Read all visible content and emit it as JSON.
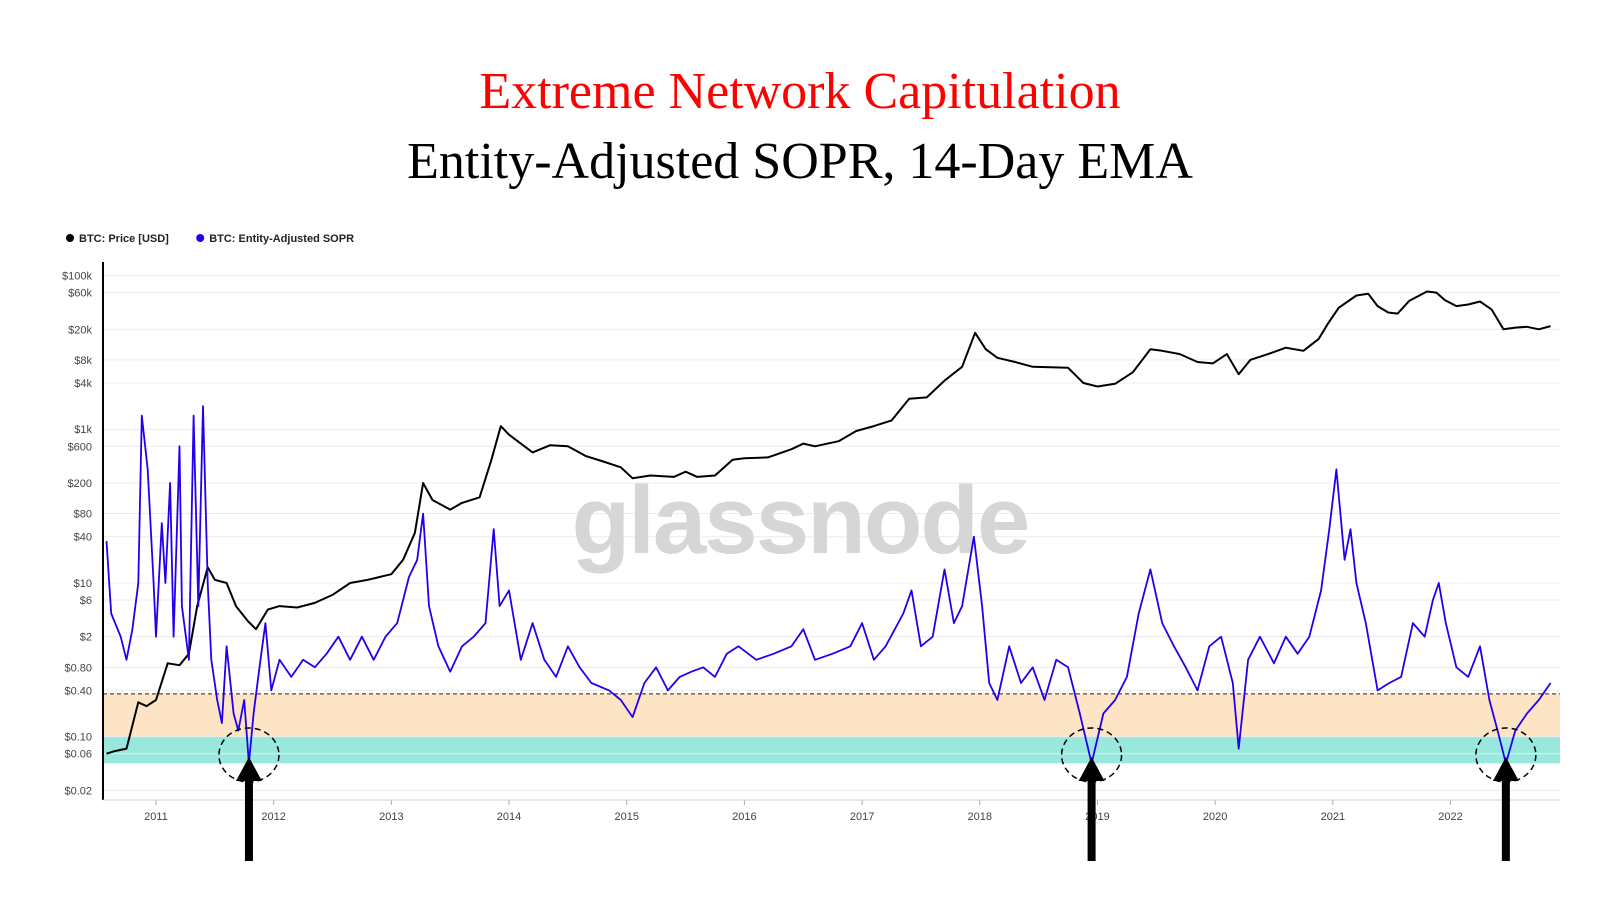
{
  "header": {
    "title": "Extreme Network Capitulation",
    "subtitle": "Entity-Adjusted SOPR, 14-Day EMA"
  },
  "watermark": "glassnode",
  "chart_data": {
    "type": "line",
    "legend": [
      {
        "label": "BTC: Price [USD]",
        "color": "#000000"
      },
      {
        "label": "BTC: Entity-Adjusted SOPR",
        "color": "#2200ee"
      }
    ],
    "y_scale": "log",
    "y_ticks": [
      "$100k",
      "$60k",
      "$20k",
      "$8k",
      "$4k",
      "$1k",
      "$600",
      "$200",
      "$80",
      "$40",
      "$10",
      "$6",
      "$2",
      "$0.80",
      "$0.40",
      "$0.10",
      "$0.06",
      "$0.02"
    ],
    "x_ticks": [
      "2011",
      "2012",
      "2013",
      "2014",
      "2015",
      "2016",
      "2017",
      "2018",
      "2019",
      "2020",
      "2021",
      "2022"
    ],
    "x_range": [
      2010.55,
      2022.93
    ],
    "bands": [
      {
        "name": "orange-zone",
        "from": 0.1,
        "to": 0.36,
        "color": "#fde4c4"
      },
      {
        "name": "teal-zone",
        "from": 0.045,
        "to": 0.1,
        "color": "#98e8de"
      }
    ],
    "reference_line": 0.36,
    "annotations": [
      {
        "type": "circle-arrow",
        "x": 2011.79
      },
      {
        "type": "circle-arrow",
        "x": 2018.95
      },
      {
        "type": "circle-arrow",
        "x": 2022.47
      }
    ],
    "series": [
      {
        "name": "BTC: Price [USD]",
        "color": "#000000",
        "points": [
          [
            2010.58,
            0.06
          ],
          [
            2010.65,
            0.065
          ],
          [
            2010.75,
            0.07
          ],
          [
            2010.85,
            0.28
          ],
          [
            2010.92,
            0.25
          ],
          [
            2011.0,
            0.3
          ],
          [
            2011.1,
            0.9
          ],
          [
            2011.2,
            0.85
          ],
          [
            2011.28,
            1.2
          ],
          [
            2011.35,
            5
          ],
          [
            2011.44,
            16
          ],
          [
            2011.5,
            11
          ],
          [
            2011.6,
            10
          ],
          [
            2011.68,
            5
          ],
          [
            2011.78,
            3.2
          ],
          [
            2011.85,
            2.5
          ],
          [
            2011.95,
            4.5
          ],
          [
            2012.05,
            5
          ],
          [
            2012.2,
            4.8
          ],
          [
            2012.35,
            5.5
          ],
          [
            2012.5,
            7
          ],
          [
            2012.65,
            10
          ],
          [
            2012.8,
            11
          ],
          [
            2013.0,
            13
          ],
          [
            2013.1,
            20
          ],
          [
            2013.2,
            45
          ],
          [
            2013.27,
            200
          ],
          [
            2013.35,
            120
          ],
          [
            2013.5,
            90
          ],
          [
            2013.6,
            110
          ],
          [
            2013.75,
            130
          ],
          [
            2013.85,
            400
          ],
          [
            2013.93,
            1100
          ],
          [
            2014.0,
            850
          ],
          [
            2014.1,
            650
          ],
          [
            2014.2,
            500
          ],
          [
            2014.35,
            620
          ],
          [
            2014.5,
            600
          ],
          [
            2014.65,
            450
          ],
          [
            2014.8,
            380
          ],
          [
            2014.95,
            320
          ],
          [
            2015.05,
            230
          ],
          [
            2015.2,
            250
          ],
          [
            2015.4,
            240
          ],
          [
            2015.5,
            280
          ],
          [
            2015.6,
            240
          ],
          [
            2015.75,
            250
          ],
          [
            2015.9,
            400
          ],
          [
            2016.0,
            420
          ],
          [
            2016.2,
            430
          ],
          [
            2016.4,
            550
          ],
          [
            2016.5,
            650
          ],
          [
            2016.6,
            600
          ],
          [
            2016.8,
            700
          ],
          [
            2016.95,
            950
          ],
          [
            2017.1,
            1100
          ],
          [
            2017.25,
            1300
          ],
          [
            2017.4,
            2500
          ],
          [
            2017.55,
            2600
          ],
          [
            2017.7,
            4300
          ],
          [
            2017.85,
            6500
          ],
          [
            2017.96,
            18000
          ],
          [
            2018.05,
            11000
          ],
          [
            2018.15,
            8500
          ],
          [
            2018.3,
            7500
          ],
          [
            2018.45,
            6500
          ],
          [
            2018.6,
            6400
          ],
          [
            2018.75,
            6300
          ],
          [
            2018.88,
            4000
          ],
          [
            2019.0,
            3600
          ],
          [
            2019.15,
            3900
          ],
          [
            2019.3,
            5500
          ],
          [
            2019.45,
            11000
          ],
          [
            2019.55,
            10500
          ],
          [
            2019.7,
            9500
          ],
          [
            2019.85,
            7500
          ],
          [
            2019.98,
            7200
          ],
          [
            2020.1,
            9500
          ],
          [
            2020.2,
            5200
          ],
          [
            2020.3,
            8000
          ],
          [
            2020.45,
            9500
          ],
          [
            2020.6,
            11500
          ],
          [
            2020.75,
            10500
          ],
          [
            2020.88,
            15000
          ],
          [
            2020.96,
            24000
          ],
          [
            2021.05,
            38000
          ],
          [
            2021.2,
            55000
          ],
          [
            2021.3,
            58000
          ],
          [
            2021.38,
            40000
          ],
          [
            2021.47,
            33000
          ],
          [
            2021.55,
            32000
          ],
          [
            2021.65,
            47000
          ],
          [
            2021.8,
            62000
          ],
          [
            2021.88,
            60000
          ],
          [
            2021.95,
            48000
          ],
          [
            2022.05,
            40000
          ],
          [
            2022.15,
            42000
          ],
          [
            2022.25,
            46000
          ],
          [
            2022.35,
            36000
          ],
          [
            2022.45,
            20000
          ],
          [
            2022.55,
            21000
          ],
          [
            2022.65,
            21500
          ],
          [
            2022.75,
            20000
          ],
          [
            2022.85,
            22000
          ]
        ]
      },
      {
        "name": "BTC: Entity-Adjusted SOPR",
        "color": "#2200ee",
        "points": [
          [
            2010.58,
            35
          ],
          [
            2010.62,
            4
          ],
          [
            2010.7,
            2
          ],
          [
            2010.75,
            1.0
          ],
          [
            2010.8,
            2.5
          ],
          [
            2010.85,
            10
          ],
          [
            2010.88,
            1500
          ],
          [
            2010.93,
            300
          ],
          [
            2010.98,
            10
          ],
          [
            2011.0,
            2
          ],
          [
            2011.05,
            60
          ],
          [
            2011.08,
            10
          ],
          [
            2011.12,
            200
          ],
          [
            2011.15,
            2
          ],
          [
            2011.2,
            600
          ],
          [
            2011.22,
            5
          ],
          [
            2011.28,
            1.0
          ],
          [
            2011.32,
            1500
          ],
          [
            2011.36,
            5
          ],
          [
            2011.4,
            2000
          ],
          [
            2011.44,
            10
          ],
          [
            2011.47,
            1.0
          ],
          [
            2011.52,
            0.3
          ],
          [
            2011.56,
            0.15
          ],
          [
            2011.6,
            1.5
          ],
          [
            2011.66,
            0.2
          ],
          [
            2011.7,
            0.12
          ],
          [
            2011.75,
            0.3
          ],
          [
            2011.79,
            0.045
          ],
          [
            2011.83,
            0.2
          ],
          [
            2011.88,
            0.8
          ],
          [
            2011.93,
            3
          ],
          [
            2011.98,
            0.4
          ],
          [
            2012.05,
            1.0
          ],
          [
            2012.15,
            0.6
          ],
          [
            2012.25,
            1.0
          ],
          [
            2012.35,
            0.8
          ],
          [
            2012.45,
            1.2
          ],
          [
            2012.55,
            2
          ],
          [
            2012.65,
            1.0
          ],
          [
            2012.75,
            2
          ],
          [
            2012.85,
            1.0
          ],
          [
            2012.95,
            2
          ],
          [
            2013.05,
            3
          ],
          [
            2013.15,
            12
          ],
          [
            2013.22,
            20
          ],
          [
            2013.27,
            80
          ],
          [
            2013.32,
            5
          ],
          [
            2013.4,
            1.5
          ],
          [
            2013.5,
            0.7
          ],
          [
            2013.6,
            1.5
          ],
          [
            2013.7,
            2
          ],
          [
            2013.8,
            3
          ],
          [
            2013.87,
            50
          ],
          [
            2013.92,
            5
          ],
          [
            2014.0,
            8
          ],
          [
            2014.1,
            1.0
          ],
          [
            2014.2,
            3
          ],
          [
            2014.3,
            1.0
          ],
          [
            2014.4,
            0.6
          ],
          [
            2014.5,
            1.5
          ],
          [
            2014.6,
            0.8
          ],
          [
            2014.7,
            0.5
          ],
          [
            2014.85,
            0.4
          ],
          [
            2014.95,
            0.3
          ],
          [
            2015.05,
            0.18
          ],
          [
            2015.15,
            0.5
          ],
          [
            2015.25,
            0.8
          ],
          [
            2015.35,
            0.4
          ],
          [
            2015.45,
            0.6
          ],
          [
            2015.55,
            0.7
          ],
          [
            2015.65,
            0.8
          ],
          [
            2015.75,
            0.6
          ],
          [
            2015.85,
            1.2
          ],
          [
            2015.95,
            1.5
          ],
          [
            2016.1,
            1.0
          ],
          [
            2016.25,
            1.2
          ],
          [
            2016.4,
            1.5
          ],
          [
            2016.5,
            2.5
          ],
          [
            2016.6,
            1.0
          ],
          [
            2016.75,
            1.2
          ],
          [
            2016.9,
            1.5
          ],
          [
            2017.0,
            3
          ],
          [
            2017.1,
            1.0
          ],
          [
            2017.2,
            1.5
          ],
          [
            2017.35,
            4
          ],
          [
            2017.42,
            8
          ],
          [
            2017.5,
            1.5
          ],
          [
            2017.6,
            2
          ],
          [
            2017.7,
            15
          ],
          [
            2017.78,
            3
          ],
          [
            2017.85,
            5
          ],
          [
            2017.95,
            40
          ],
          [
            2018.02,
            5
          ],
          [
            2018.08,
            0.5
          ],
          [
            2018.15,
            0.3
          ],
          [
            2018.25,
            1.5
          ],
          [
            2018.35,
            0.5
          ],
          [
            2018.45,
            0.8
          ],
          [
            2018.55,
            0.3
          ],
          [
            2018.65,
            1.0
          ],
          [
            2018.75,
            0.8
          ],
          [
            2018.85,
            0.2
          ],
          [
            2018.95,
            0.045
          ],
          [
            2019.05,
            0.2
          ],
          [
            2019.15,
            0.3
          ],
          [
            2019.25,
            0.6
          ],
          [
            2019.35,
            4
          ],
          [
            2019.45,
            15
          ],
          [
            2019.55,
            3
          ],
          [
            2019.65,
            1.5
          ],
          [
            2019.75,
            0.8
          ],
          [
            2019.85,
            0.4
          ],
          [
            2019.95,
            1.5
          ],
          [
            2020.05,
            2
          ],
          [
            2020.15,
            0.5
          ],
          [
            2020.2,
            0.07
          ],
          [
            2020.28,
            1.0
          ],
          [
            2020.38,
            2
          ],
          [
            2020.5,
            0.9
          ],
          [
            2020.6,
            2
          ],
          [
            2020.7,
            1.2
          ],
          [
            2020.8,
            2
          ],
          [
            2020.9,
            8
          ],
          [
            2020.97,
            50
          ],
          [
            2021.03,
            300
          ],
          [
            2021.1,
            20
          ],
          [
            2021.15,
            50
          ],
          [
            2021.2,
            10
          ],
          [
            2021.28,
            3
          ],
          [
            2021.38,
            0.4
          ],
          [
            2021.48,
            0.5
          ],
          [
            2021.58,
            0.6
          ],
          [
            2021.68,
            3
          ],
          [
            2021.78,
            2
          ],
          [
            2021.85,
            6
          ],
          [
            2021.9,
            10
          ],
          [
            2021.96,
            3
          ],
          [
            2022.05,
            0.8
          ],
          [
            2022.15,
            0.6
          ],
          [
            2022.25,
            1.5
          ],
          [
            2022.33,
            0.3
          ],
          [
            2022.4,
            0.12
          ],
          [
            2022.47,
            0.045
          ],
          [
            2022.55,
            0.12
          ],
          [
            2022.65,
            0.2
          ],
          [
            2022.75,
            0.3
          ],
          [
            2022.85,
            0.5
          ]
        ]
      }
    ]
  }
}
